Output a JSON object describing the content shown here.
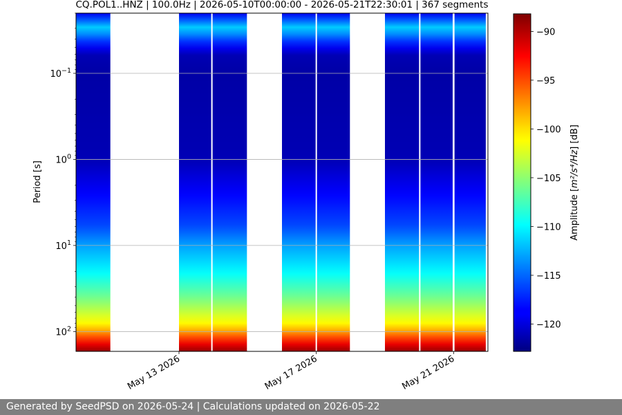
{
  "chart_data": {
    "type": "heatmap",
    "title": "CQ.POL1..HNZ | 100.0Hz | 2026-05-10T00:00:00 - 2026-05-21T22:30:01 | 367 segments",
    "ylabel": "Period [s]",
    "xlabel": "",
    "yscale": "log",
    "y_inverted": true,
    "ylim": [
      0.02,
      170
    ],
    "xlim": [
      "2026-05-10T00:00:00",
      "2026-05-22T00:00:00"
    ],
    "x_ticks": [
      {
        "date": "2026-05-13",
        "label": "May 13 2026"
      },
      {
        "date": "2026-05-17",
        "label": "May 17 2026"
      },
      {
        "date": "2026-05-21",
        "label": "May 21 2026"
      }
    ],
    "y_ticks": [
      {
        "value": 0.1,
        "mantissa": "10",
        "exp": "−1"
      },
      {
        "value": 1,
        "mantissa": "10",
        "exp": "0"
      },
      {
        "value": 10,
        "mantissa": "10",
        "exp": "1"
      },
      {
        "value": 100,
        "mantissa": "10",
        "exp": "2"
      }
    ],
    "grid": "horizontal",
    "colormap": "jet",
    "data_intervals": [
      {
        "start": "2026-05-10T00:00:00",
        "end": "2026-05-11T00:00:00"
      },
      {
        "start": "2026-05-13T00:00:00",
        "end": "2026-05-14T23:30:00"
      },
      {
        "start": "2026-05-16T00:00:00",
        "end": "2026-05-17T23:30:00"
      },
      {
        "start": "2026-05-19T00:00:00",
        "end": "2026-05-21T22:30:01"
      }
    ],
    "data_gaps": [
      "2026-05-13T23:00:00",
      "2026-05-17T00:00:00",
      "2026-05-20T00:20:00",
      "2026-05-20T23:50:00",
      "2026-05-21T00:10:00"
    ],
    "amplitude_profile_db": [
      {
        "period": 0.02,
        "db": -119
      },
      {
        "period": 0.03,
        "db": -111
      },
      {
        "period": 0.04,
        "db": -116
      },
      {
        "period": 0.06,
        "db": -121
      },
      {
        "period": 0.1,
        "db": -121.5
      },
      {
        "period": 1,
        "db": -121
      },
      {
        "period": 3,
        "db": -118
      },
      {
        "period": 6,
        "db": -116
      },
      {
        "period": 10,
        "db": -113
      },
      {
        "period": 20,
        "db": -110
      },
      {
        "period": 40,
        "db": -106
      },
      {
        "period": 80,
        "db": -101
      },
      {
        "period": 100,
        "db": -98
      },
      {
        "period": 130,
        "db": -93
      },
      {
        "period": 170,
        "db": -89
      }
    ],
    "colorbar": {
      "label_prefix": "Amplitude [",
      "label_math": "m²/s⁴/Hz",
      "label_suffix": "] [dB]",
      "range": [
        -122.8,
        -88.2
      ],
      "ticks": [
        {
          "value": -90,
          "label": "−90"
        },
        {
          "value": -95,
          "label": "−95"
        },
        {
          "value": -100,
          "label": "−100"
        },
        {
          "value": -105,
          "label": "−105"
        },
        {
          "value": -110,
          "label": "−110"
        },
        {
          "value": -115,
          "label": "−115"
        },
        {
          "value": -120,
          "label": "−120"
        }
      ]
    }
  },
  "footer": {
    "text": "Generated by SeedPSD on 2026-05-24 | Calculations updated on 2026-05-22"
  }
}
